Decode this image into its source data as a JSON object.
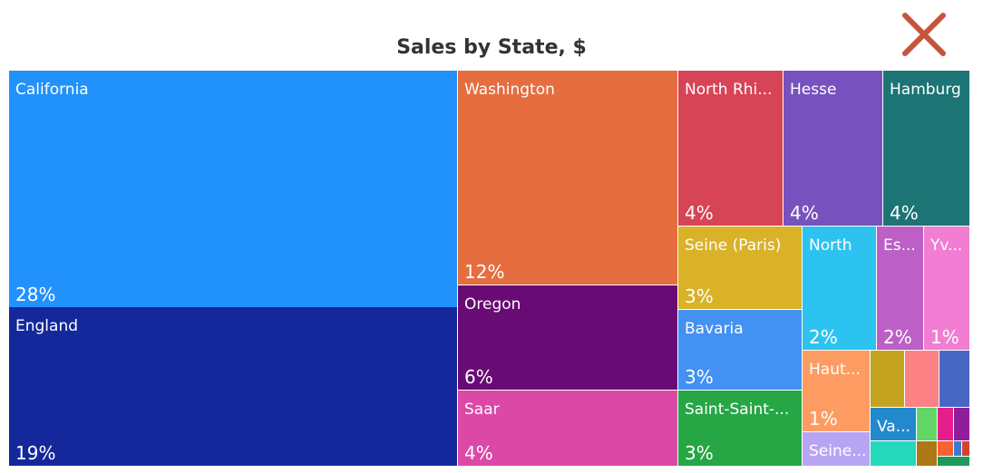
{
  "chart_data": {
    "type": "treemap",
    "title": "Sales by State, $",
    "nodes": [
      {
        "label": "California",
        "display_label": "California",
        "value": 28,
        "color": "#2191fb"
      },
      {
        "label": "England",
        "display_label": "England",
        "value": 19,
        "color": "#14289b"
      },
      {
        "label": "Washington",
        "display_label": "Washington",
        "value": 12,
        "color": "#e56d3f"
      },
      {
        "label": "Oregon",
        "display_label": "Oregon",
        "value": 6,
        "color": "#680b75"
      },
      {
        "label": "Saar",
        "display_label": "Saar",
        "value": 4,
        "color": "#db48a6"
      },
      {
        "label": "North Rhi...",
        "display_label": "North Rhi...",
        "value": 4,
        "color": "#d74455"
      },
      {
        "label": "Hesse",
        "display_label": "Hesse",
        "value": 4,
        "color": "#7752bf"
      },
      {
        "label": "Hamburg",
        "display_label": "Hamburg",
        "value": 4,
        "color": "#1d7474"
      },
      {
        "label": "Seine (Paris)",
        "display_label": "Seine (Paris)",
        "value": 3,
        "color": "#d9b228"
      },
      {
        "label": "Bavaria",
        "display_label": "Bavaria",
        "value": 3,
        "color": "#4391f3"
      },
      {
        "label": "Saint-Saint-...",
        "display_label": "Saint-Saint-...",
        "value": 3,
        "color": "#27a645"
      },
      {
        "label": "North",
        "display_label": "North",
        "value": 2,
        "color": "#2cc3f0"
      },
      {
        "label": "Es...",
        "display_label": "Es...",
        "value": 2,
        "color": "#bc5fc6"
      },
      {
        "label": "Yv...",
        "display_label": "Yv...",
        "value": 1,
        "color": "#f17ed2"
      },
      {
        "label": "Haut...",
        "display_label": "Haut...",
        "value": 1,
        "color": "#fd9c62"
      },
      {
        "label": "Seine...",
        "display_label": "Seine...",
        "value": null,
        "color": "#b7a5f3"
      },
      {
        "label": "Va...",
        "display_label": "Va...",
        "value": null,
        "color": "#2389cd"
      }
    ],
    "unlabeled_colors": [
      "#c3a320",
      "#fb8185",
      "#4866c3",
      "#62d768",
      "#e51e8b",
      "#8e1e99",
      "#25d8bc",
      "#ad7816",
      "#f7622e",
      "#3a7bd0",
      "#d34230",
      "#1d9a59"
    ]
  },
  "ui": {
    "close_icon": "close-icon"
  }
}
